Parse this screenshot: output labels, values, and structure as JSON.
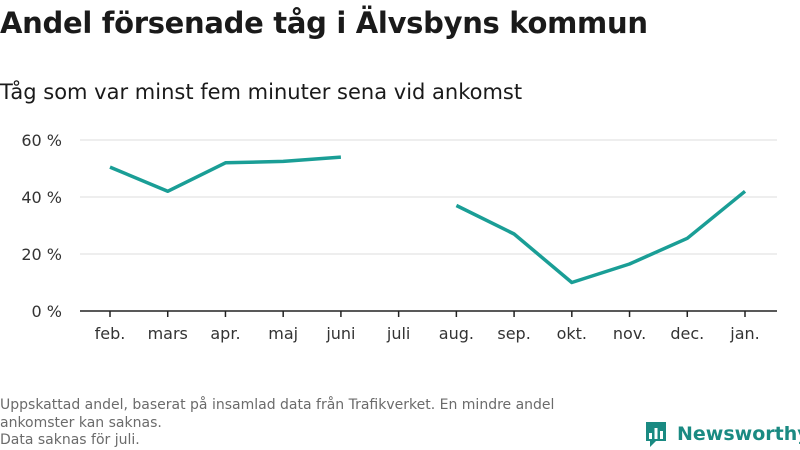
{
  "header": {
    "title": "Andel försenade tåg i Älvsbyns kommun",
    "subtitle": "Tåg som var minst fem minuter sena vid ankomst"
  },
  "footnote": {
    "lines": [
      "Uppskattad andel, baserat på insamlad data från Trafikverket. En mindre andel ankomster kan saknas.",
      "Data saknas för juli."
    ]
  },
  "logo": {
    "text": "Newsworthy",
    "icon": "bar-chart-flag-icon"
  },
  "colors": {
    "line": "#1a9e96",
    "grid": "#dddddd",
    "axis": "#222222",
    "logo": "#1a8a82"
  },
  "chart_data": {
    "type": "line",
    "title": "",
    "xlabel": "",
    "ylabel": "",
    "categories": [
      "feb.",
      "mars",
      "apr.",
      "maj",
      "juni",
      "juli",
      "aug.",
      "sep.",
      "okt.",
      "nov.",
      "dec.",
      "jan."
    ],
    "series": [
      {
        "values": [
          50.5,
          42,
          52,
          52.5,
          54,
          null,
          37,
          27,
          10,
          16.5,
          25.5,
          42
        ]
      }
    ],
    "ylim": [
      0,
      60
    ],
    "yticks": [
      0,
      20,
      40,
      60
    ],
    "ytick_labels": [
      "0 %",
      "20 %",
      "40 %",
      "60 %"
    ],
    "grid": true
  }
}
